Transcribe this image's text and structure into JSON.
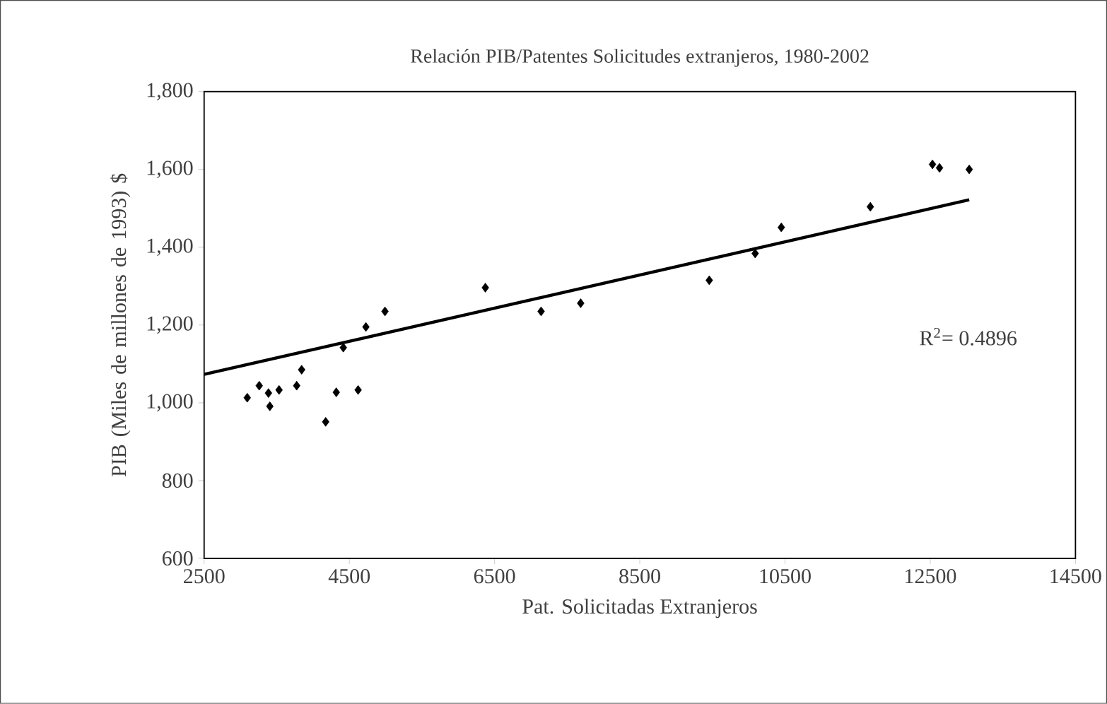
{
  "chart_data": {
    "type": "scatter",
    "title": "Relación PIB/Patentes Solicitudes extranjeros, 1980-2002",
    "xlabel": "Pat. Solicitadas Extranjeros",
    "ylabel": "PIB (Miles de millones de 1993) $",
    "annotations": [
      "R$^{2}$= 0.4896"
    ],
    "xlim": [
      2500,
      14500
    ],
    "ylim": [
      600,
      1800
    ],
    "xticks": [
      2500,
      4500,
      6500,
      8500,
      10500,
      12500,
      14500
    ],
    "yticks": [
      {
        "value": 600,
        "label": "600"
      },
      {
        "value": 800,
        "label": "800"
      },
      {
        "value": 1000,
        "label": "1,000"
      },
      {
        "value": 1200,
        "label": "1,200"
      },
      {
        "value": 1400,
        "label": "1,400"
      },
      {
        "value": 1600,
        "label": "1,600"
      },
      {
        "value": 1800,
        "label": "1,800"
      }
    ],
    "grid": false,
    "marker": "diamond",
    "series": [
      {
        "type": "scatter",
        "color": "#000000",
        "x": [
          3094,
          3259,
          3386,
          3405,
          3532,
          3775,
          3843,
          4174,
          4320,
          4417,
          4621,
          4728,
          4991,
          6373,
          7141,
          7686,
          9457,
          10089,
          10449,
          11675,
          12531,
          12628,
          13037
        ],
        "values": [
          1013,
          1044,
          1025,
          991,
          1033,
          1044,
          1085,
          951,
          1027,
          1142,
          1033,
          1195,
          1235,
          1296,
          1235,
          1256,
          1315,
          1384,
          1451,
          1504,
          1613,
          1604,
          1600
        ]
      },
      {
        "type": "line",
        "color": "#000000",
        "marker": "none",
        "line_style": "solid",
        "x": [
          2500,
          13037
        ],
        "values": [
          1073,
          1522
        ]
      }
    ]
  }
}
